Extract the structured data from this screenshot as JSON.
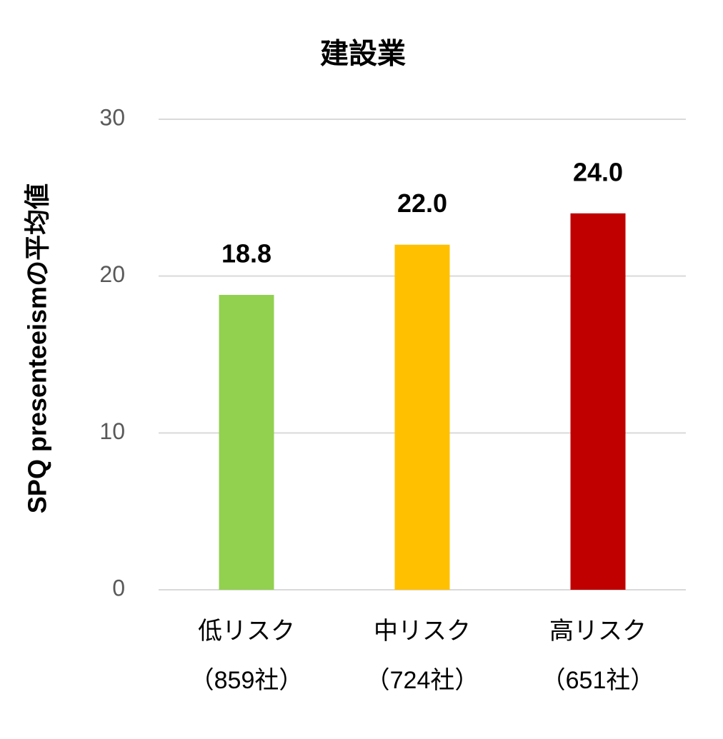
{
  "chart_data": {
    "type": "bar",
    "title": "建設業",
    "y_label": "SPQ presenteeismの平均値",
    "categories": [
      [
        "低リスク",
        "（859社）"
      ],
      [
        "中リスク",
        "（724社）"
      ],
      [
        "高リスク",
        "（651社）"
      ]
    ],
    "values": [
      18.8,
      22,
      24
    ],
    "value_labels": [
      "18.8",
      "22.0",
      "24.0"
    ],
    "colors": [
      "#92d050",
      "#ffc000",
      "#c00000"
    ],
    "ylim": [
      0,
      30
    ],
    "yticks": [
      0,
      10,
      20,
      30
    ],
    "grid": true
  }
}
